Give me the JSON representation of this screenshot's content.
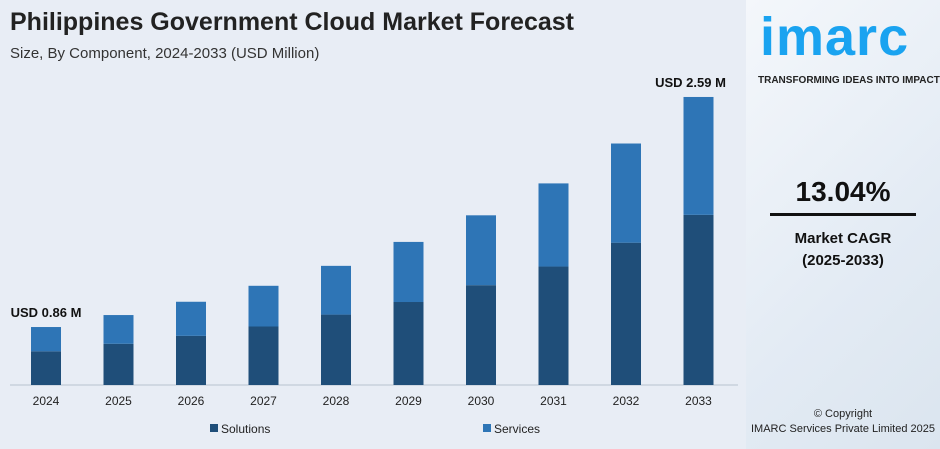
{
  "chart_data": {
    "type": "bar",
    "stacked": true,
    "title": "Philippines Government Cloud Market Forecast",
    "subtitle": "Size, By Component, 2024-2033 (USD Million)",
    "categories": [
      "2024",
      "2025",
      "2026",
      "2027",
      "2028",
      "2029",
      "2030",
      "2031",
      "2032",
      "2033"
    ],
    "series": [
      {
        "name": "Solutions",
        "color": "#1f4e79",
        "values": [
          0.5,
          0.56,
          0.62,
          0.69,
          0.78,
          0.87,
          1.0,
          1.14,
          1.32,
          1.53
        ]
      },
      {
        "name": "Services",
        "color": "#2e75b6",
        "values": [
          0.36,
          0.39,
          0.43,
          0.48,
          0.54,
          0.63,
          0.7,
          0.8,
          0.92,
          1.06
        ]
      }
    ],
    "annotations": {
      "first": "USD 0.86 M",
      "last": "USD 2.59 M"
    },
    "legend_placement": "bottom",
    "grid": false
  },
  "side": {
    "logo": "imarc",
    "tagline": "TRANSFORMING IDEAS INTO IMPACT",
    "cagr": "13.04%",
    "cagr_label": "Market CAGR",
    "cagr_period": "(2025-2033)",
    "copyright": "© Copyright",
    "company": "IMARC Services Private Limited 2025"
  }
}
